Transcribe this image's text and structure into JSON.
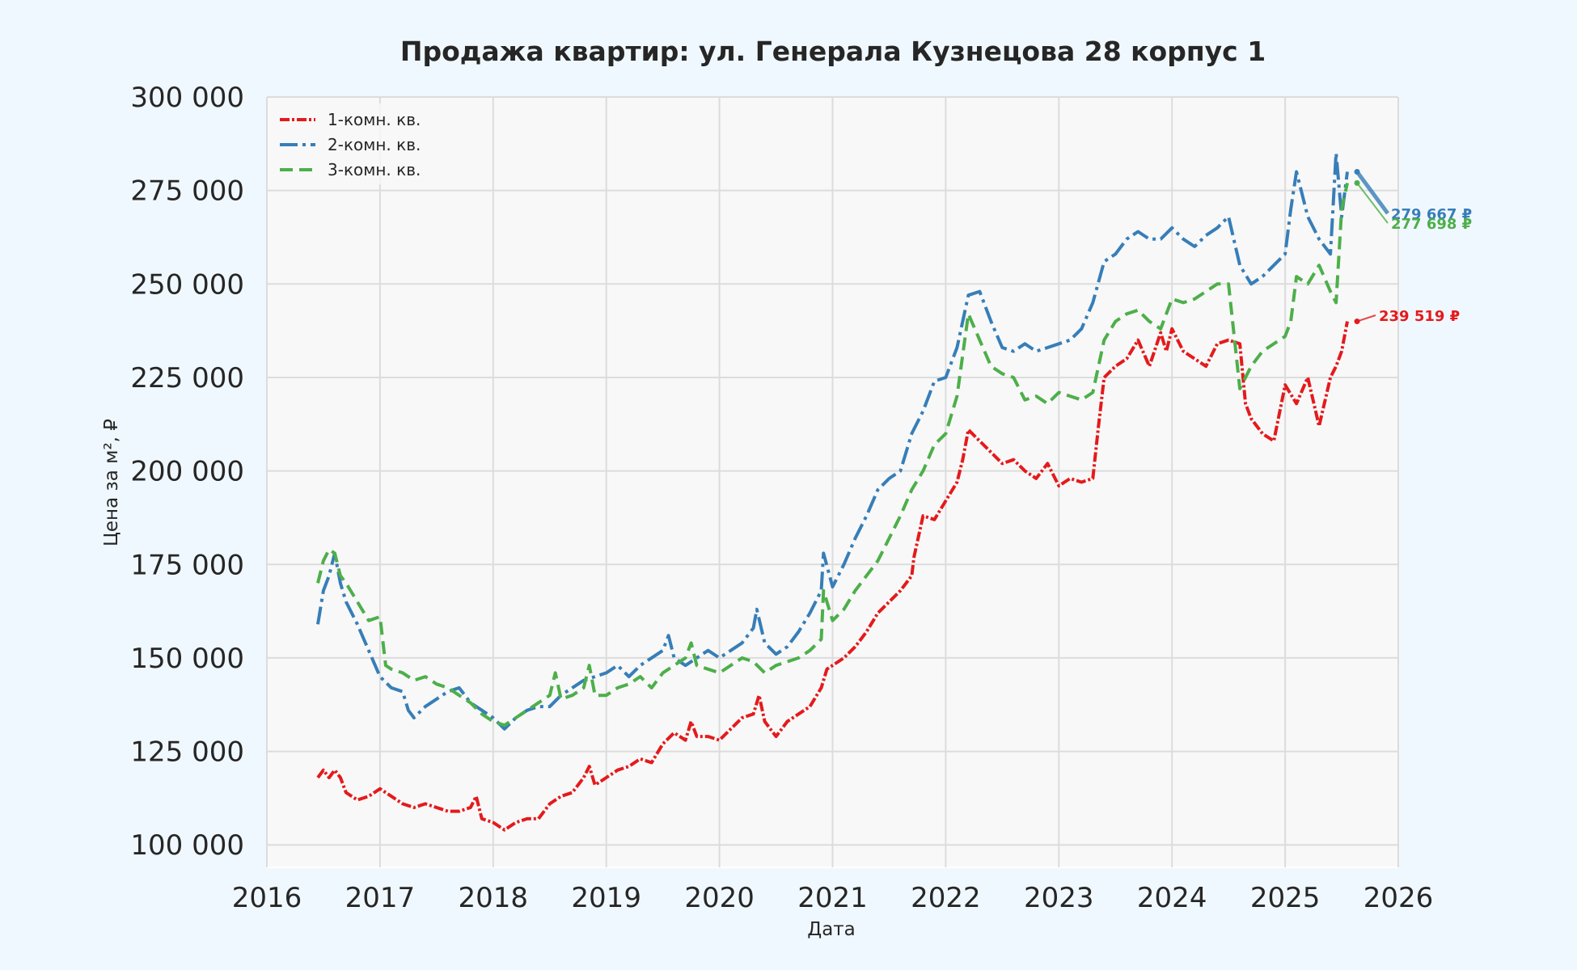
{
  "chart_data": {
    "type": "line",
    "title": "Продажа квартир: ул. Генерала Кузнецова 28 корпус 1",
    "xlabel": "Дата",
    "ylabel": "Цена за м², ₽",
    "xlim": [
      2016,
      2026
    ],
    "ylim": [
      94000,
      300000
    ],
    "x_ticks": [
      "2016",
      "2017",
      "2018",
      "2019",
      "2020",
      "2021",
      "2022",
      "2023",
      "2024",
      "2025",
      "2026"
    ],
    "y_ticks": [
      "100 000",
      "125 000",
      "150 000",
      "175 000",
      "200 000",
      "225 000",
      "250 000",
      "275 000",
      "300 000"
    ],
    "y_tick_values": [
      100000,
      125000,
      150000,
      175000,
      200000,
      225000,
      250000,
      275000,
      300000
    ],
    "grid": true,
    "legend_position": "top-left",
    "series": [
      {
        "name": "1-комн. кв.",
        "color": "#e41a1c",
        "dash": "dash-dot-dense",
        "end_label": "239 519 ₽",
        "x": [
          2016.45,
          2016.5,
          2016.55,
          2016.6,
          2016.65,
          2016.7,
          2016.8,
          2016.9,
          2017.0,
          2017.1,
          2017.2,
          2017.3,
          2017.4,
          2017.5,
          2017.6,
          2017.7,
          2017.8,
          2017.85,
          2017.9,
          2018.0,
          2018.1,
          2018.2,
          2018.3,
          2018.4,
          2018.5,
          2018.6,
          2018.7,
          2018.8,
          2018.85,
          2018.9,
          2019.0,
          2019.1,
          2019.2,
          2019.3,
          2019.4,
          2019.5,
          2019.6,
          2019.7,
          2019.75,
          2019.8,
          2019.9,
          2020.0,
          2020.1,
          2020.2,
          2020.3,
          2020.35,
          2020.4,
          2020.5,
          2020.6,
          2020.7,
          2020.8,
          2020.9,
          2020.95,
          2021.0,
          2021.1,
          2021.2,
          2021.3,
          2021.4,
          2021.5,
          2021.6,
          2021.7,
          2021.72,
          2021.8,
          2021.9,
          2022.0,
          2022.1,
          2022.15,
          2022.2,
          2022.3,
          2022.4,
          2022.5,
          2022.6,
          2022.7,
          2022.8,
          2022.9,
          2023.0,
          2023.1,
          2023.2,
          2023.3,
          2023.35,
          2023.4,
          2023.5,
          2023.6,
          2023.7,
          2023.8,
          2023.9,
          2023.95,
          2024.0,
          2024.1,
          2024.2,
          2024.3,
          2024.4,
          2024.5,
          2024.6,
          2024.65,
          2024.7,
          2024.8,
          2024.9,
          2025.0,
          2025.1,
          2025.2,
          2025.3,
          2025.4,
          2025.45,
          2025.5,
          2025.55
        ],
        "y": [
          118000,
          120000,
          118000,
          120000,
          118000,
          114000,
          112000,
          113000,
          115000,
          113000,
          111000,
          110000,
          111000,
          110000,
          109000,
          109000,
          110000,
          113000,
          107000,
          106000,
          104000,
          106000,
          107000,
          107000,
          111000,
          113000,
          114000,
          118000,
          121000,
          116000,
          118000,
          120000,
          121000,
          123000,
          122000,
          127000,
          130000,
          128000,
          133000,
          129000,
          129000,
          128000,
          131000,
          134000,
          135000,
          140000,
          133000,
          129000,
          133000,
          135000,
          137000,
          142000,
          147000,
          148000,
          150000,
          153000,
          157000,
          162000,
          165000,
          168000,
          172000,
          177000,
          188000,
          187000,
          192000,
          197000,
          203000,
          211000,
          208000,
          205000,
          202000,
          203000,
          200000,
          198000,
          202000,
          196000,
          198000,
          197000,
          198000,
          212000,
          225000,
          228000,
          230000,
          235000,
          228000,
          237000,
          232000,
          238000,
          232000,
          230000,
          228000,
          234000,
          235000,
          234000,
          218000,
          214000,
          210000,
          208000,
          223000,
          218000,
          225000,
          212000,
          225000,
          228000,
          232000,
          240000
        ]
      },
      {
        "name": "2-комн. кв.",
        "color": "#377eb8",
        "dash": "dash-dot",
        "end_label": "279 667 ₽",
        "x": [
          2016.45,
          2016.5,
          2016.55,
          2016.6,
          2016.65,
          2016.7,
          2016.8,
          2016.9,
          2017.0,
          2017.1,
          2017.2,
          2017.25,
          2017.3,
          2017.4,
          2017.5,
          2017.6,
          2017.7,
          2017.8,
          2017.9,
          2018.0,
          2018.1,
          2018.2,
          2018.3,
          2018.4,
          2018.5,
          2018.6,
          2018.7,
          2018.8,
          2018.9,
          2019.0,
          2019.1,
          2019.2,
          2019.3,
          2019.4,
          2019.5,
          2019.55,
          2019.6,
          2019.7,
          2019.8,
          2019.9,
          2020.0,
          2020.1,
          2020.2,
          2020.3,
          2020.33,
          2020.4,
          2020.5,
          2020.6,
          2020.7,
          2020.8,
          2020.9,
          2020.92,
          2021.0,
          2021.1,
          2021.2,
          2021.3,
          2021.4,
          2021.5,
          2021.6,
          2021.7,
          2021.8,
          2021.9,
          2022.0,
          2022.1,
          2022.2,
          2022.3,
          2022.4,
          2022.5,
          2022.6,
          2022.7,
          2022.8,
          2022.9,
          2023.0,
          2023.1,
          2023.2,
          2023.3,
          2023.4,
          2023.5,
          2023.6,
          2023.7,
          2023.8,
          2023.9,
          2024.0,
          2024.1,
          2024.2,
          2024.3,
          2024.4,
          2024.5,
          2024.6,
          2024.7,
          2024.8,
          2024.9,
          2025.0,
          2025.05,
          2025.1,
          2025.2,
          2025.3,
          2025.4,
          2025.45,
          2025.5,
          2025.55
        ],
        "y": [
          159000,
          168000,
          172000,
          178000,
          170000,
          165000,
          159000,
          152000,
          145000,
          142000,
          141000,
          136000,
          134000,
          137000,
          139000,
          141000,
          142000,
          138000,
          136000,
          134000,
          131000,
          134000,
          136000,
          137000,
          137000,
          140000,
          142000,
          144000,
          145000,
          146000,
          148000,
          145000,
          148000,
          150000,
          152000,
          156000,
          150000,
          148000,
          150000,
          152000,
          150000,
          152000,
          154000,
          158000,
          163000,
          154000,
          151000,
          153000,
          157000,
          162000,
          168000,
          178000,
          169000,
          175000,
          182000,
          188000,
          195000,
          198000,
          200000,
          210000,
          216000,
          224000,
          225000,
          233000,
          247000,
          248000,
          240000,
          233000,
          232000,
          234000,
          232000,
          233000,
          234000,
          235000,
          238000,
          245000,
          256000,
          258000,
          262000,
          264000,
          262000,
          262000,
          265000,
          262000,
          260000,
          263000,
          265000,
          268000,
          255000,
          250000,
          252000,
          255000,
          258000,
          270000,
          280000,
          268000,
          262000,
          258000,
          285000,
          268000,
          280000
        ]
      },
      {
        "name": "3-комн. кв.",
        "color": "#4daf4a",
        "dash": "dashed",
        "end_label": "277 698 ₽",
        "x": [
          2016.45,
          2016.5,
          2016.55,
          2016.6,
          2016.65,
          2016.7,
          2016.8,
          2016.9,
          2017.0,
          2017.05,
          2017.1,
          2017.2,
          2017.3,
          2017.4,
          2017.5,
          2017.6,
          2017.7,
          2017.8,
          2017.9,
          2018.0,
          2018.1,
          2018.2,
          2018.3,
          2018.4,
          2018.5,
          2018.55,
          2018.6,
          2018.7,
          2018.8,
          2018.85,
          2018.9,
          2019.0,
          2019.1,
          2019.2,
          2019.3,
          2019.4,
          2019.5,
          2019.6,
          2019.7,
          2019.75,
          2019.8,
          2019.9,
          2020.0,
          2020.1,
          2020.2,
          2020.3,
          2020.4,
          2020.5,
          2020.6,
          2020.7,
          2020.8,
          2020.9,
          2020.92,
          2021.0,
          2021.1,
          2021.2,
          2021.3,
          2021.4,
          2021.5,
          2021.6,
          2021.7,
          2021.8,
          2021.9,
          2022.0,
          2022.1,
          2022.2,
          2022.3,
          2022.4,
          2022.5,
          2022.6,
          2022.7,
          2022.8,
          2022.9,
          2023.0,
          2023.1,
          2023.2,
          2023.3,
          2023.4,
          2023.5,
          2023.6,
          2023.7,
          2023.8,
          2023.9,
          2024.0,
          2024.1,
          2024.2,
          2024.3,
          2024.4,
          2024.5,
          2024.6,
          2024.7,
          2024.8,
          2024.9,
          2025.0,
          2025.05,
          2025.1,
          2025.2,
          2025.3,
          2025.4,
          2025.45,
          2025.5,
          2025.55
        ],
        "y": [
          170000,
          176000,
          179000,
          178000,
          172000,
          170000,
          165000,
          160000,
          161000,
          148000,
          147000,
          146000,
          144000,
          145000,
          143000,
          142000,
          140000,
          138000,
          135000,
          133000,
          132000,
          134000,
          136000,
          138000,
          140000,
          146000,
          139000,
          140000,
          142000,
          148000,
          140000,
          140000,
          142000,
          143000,
          145000,
          142000,
          146000,
          148000,
          150000,
          154000,
          148000,
          147000,
          146000,
          148000,
          150000,
          149000,
          146000,
          148000,
          149000,
          150000,
          152000,
          155000,
          168000,
          160000,
          163000,
          168000,
          172000,
          176000,
          182000,
          188000,
          195000,
          200000,
          207000,
          210000,
          220000,
          242000,
          235000,
          228000,
          226000,
          225000,
          219000,
          220000,
          218000,
          221000,
          220000,
          219000,
          221000,
          235000,
          240000,
          242000,
          243000,
          240000,
          238000,
          246000,
          245000,
          246000,
          248000,
          250000,
          250000,
          222000,
          228000,
          232000,
          234000,
          236000,
          240000,
          252000,
          250000,
          255000,
          248000,
          245000,
          270000,
          277000
        ]
      }
    ]
  }
}
